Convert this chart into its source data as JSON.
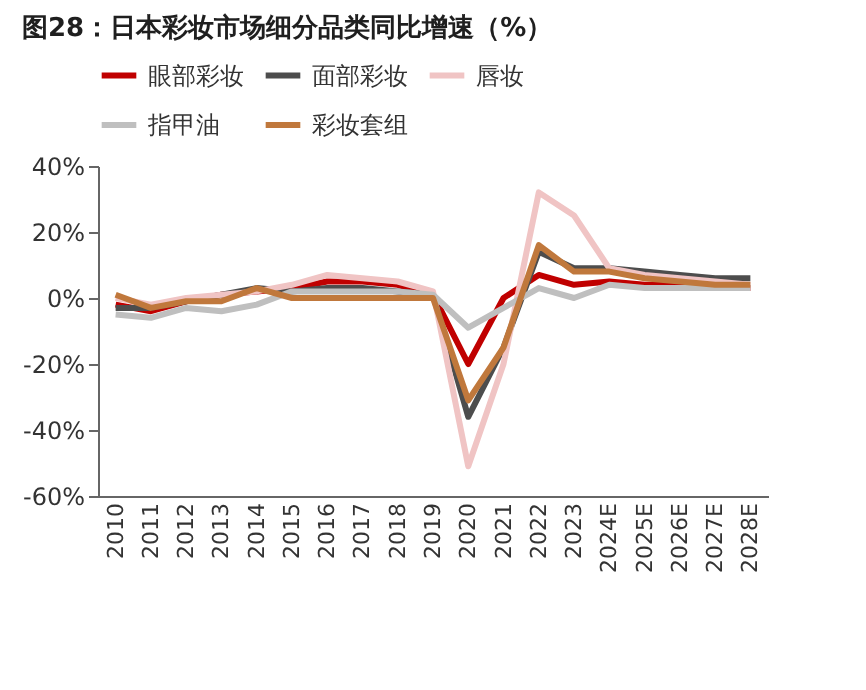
{
  "chart_data": {
    "type": "line",
    "title": "图28：日本彩妆市场细分品类同比增速（%）",
    "categories": [
      "2010",
      "2011",
      "2012",
      "2013",
      "2014",
      "2015",
      "2016",
      "2017",
      "2018",
      "2019",
      "2020",
      "2021",
      "2022",
      "2023",
      "2024E",
      "2025E",
      "2026E",
      "2027E",
      "2028E"
    ],
    "series": [
      {
        "name": "眼部彩妆",
        "color": "#c00000",
        "values": [
          -2,
          -4,
          -1,
          1,
          2,
          3,
          5,
          5,
          4,
          1,
          -20,
          0,
          7,
          4,
          5,
          4,
          4,
          3,
          3
        ]
      },
      {
        "name": "面部彩妆",
        "color": "#4d4d4d",
        "values": [
          -3,
          -3,
          -1,
          1,
          3,
          2,
          3,
          3,
          2,
          1,
          -36,
          -15,
          14,
          9,
          9,
          8,
          7,
          6,
          6
        ]
      },
      {
        "name": "唇妆",
        "color": "#f0c4c4",
        "values": [
          0,
          -2,
          0,
          1,
          2,
          4,
          7,
          6,
          5,
          2,
          -51,
          -20,
          32,
          25,
          9,
          7,
          6,
          5,
          4
        ]
      },
      {
        "name": "指甲油",
        "color": "#bfbfbf",
        "values": [
          -5,
          -6,
          -3,
          -4,
          -2,
          2,
          2,
          2,
          2,
          1,
          -9,
          -3,
          3,
          0,
          4,
          3,
          3,
          3,
          3
        ]
      },
      {
        "name": "彩妆套组",
        "color": "#c0783c",
        "values": [
          1,
          -3,
          -1,
          -1,
          3,
          0,
          0,
          0,
          0,
          0,
          -31,
          -15,
          16,
          8,
          8,
          6,
          5,
          4,
          4
        ]
      }
    ],
    "ylim": [
      -60,
      40
    ],
    "yticks": [
      {
        "value": -60,
        "label": "-60%"
      },
      {
        "value": -40,
        "label": "-40%"
      },
      {
        "value": -20,
        "label": "-20%"
      },
      {
        "value": 0,
        "label": "0%"
      },
      {
        "value": 20,
        "label": "20%"
      },
      {
        "value": 40,
        "label": "40%"
      }
    ],
    "grid": false,
    "legend": "top",
    "marker": "none",
    "line_style": "solid"
  }
}
